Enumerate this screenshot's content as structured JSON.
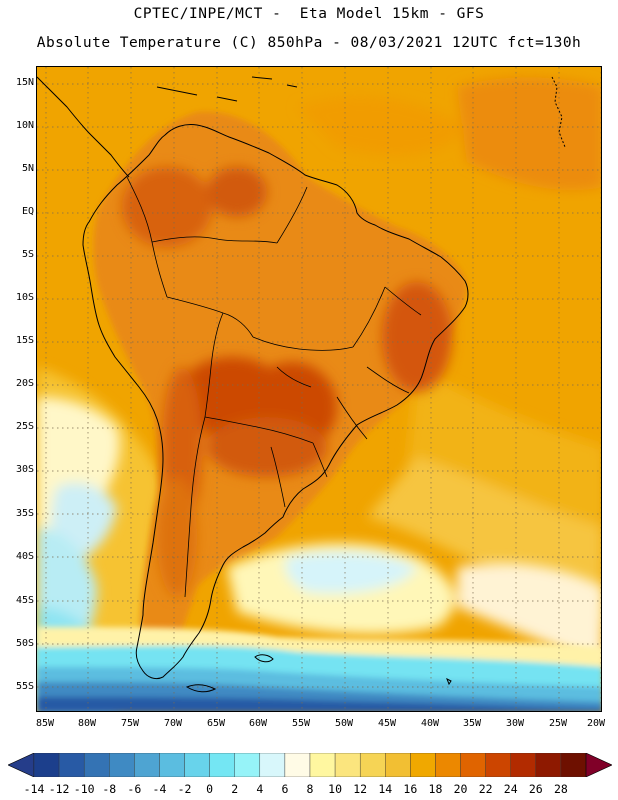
{
  "header": {
    "line1": "CPTEC/INPE/MCT -  Eta Model 15km - GFS",
    "line2": "Absolute Temperature (C) 850hPa - 08/03/2021 12UTC fct=130h"
  },
  "map": {
    "lat_labels": [
      "15N",
      "10N",
      "5N",
      "EQ",
      "5S",
      "10S",
      "15S",
      "20S",
      "25S",
      "30S",
      "35S",
      "40S",
      "45S",
      "50S",
      "55S"
    ],
    "lon_labels": [
      "85W",
      "80W",
      "75W",
      "70W",
      "65W",
      "60W",
      "55W",
      "50W",
      "45W",
      "40W",
      "35W",
      "30W",
      "25W",
      "20W"
    ]
  },
  "colorbar": {
    "labels": [
      "-14",
      "-12",
      "-10",
      "-8",
      "-6",
      "-4",
      "-2",
      "0",
      "2",
      "4",
      "6",
      "8",
      "10",
      "12",
      "14",
      "16",
      "18",
      "20",
      "22",
      "24",
      "26",
      "28"
    ],
    "colors": [
      "#1c3f8c",
      "#285aa5",
      "#3473b4",
      "#3f8ac3",
      "#4ea4d2",
      "#5bbde0",
      "#68d3eb",
      "#74e6f3",
      "#96f3f8",
      "#d8f7fb",
      "#fffbe6",
      "#fff7a0",
      "#fbe57e",
      "#f6d455",
      "#f2bf33",
      "#f0a800",
      "#ec8800",
      "#e06400",
      "#cc4500",
      "#b22b00",
      "#8e1900",
      "#6e1000"
    ],
    "end_colors": {
      "low": "#253d8a",
      "high": "#800028"
    }
  }
}
